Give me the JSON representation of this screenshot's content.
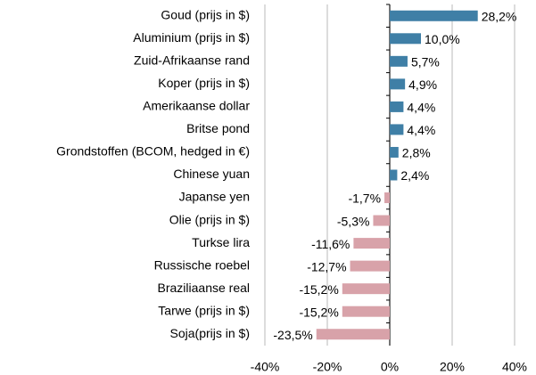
{
  "chart_data": {
    "type": "bar",
    "orientation": "horizontal",
    "categories": [
      "Goud (prijs in $)",
      "Aluminium (prijs in $)",
      "Zuid-Afrikaanse rand",
      "Koper (prijs in $)",
      "Amerikaanse dollar",
      "Britse pond",
      "Grondstoffen (BCOM, hedged in €)",
      "Chinese yuan",
      "Japanse yen",
      "Olie (prijs in $)",
      "Turkse lira",
      "Russische roebel",
      "Braziliaanse real",
      "Tarwe (prijs in $)",
      "Soja(prijs in $)"
    ],
    "values": [
      28.2,
      10.0,
      5.7,
      4.9,
      4.4,
      4.4,
      2.8,
      2.4,
      -1.7,
      -5.3,
      -11.6,
      -12.7,
      -15.2,
      -15.2,
      -23.5
    ],
    "value_labels": [
      "28,2%",
      "10,0%",
      "5,7%",
      "4,9%",
      "4,4%",
      "4,4%",
      "2,8%",
      "2,4%",
      "-1,7%",
      "-5,3%",
      "-11,6%",
      "-12,7%",
      "-15,2%",
      "-15,2%",
      "-23,5%"
    ],
    "positive_color": "#3f7fa6",
    "negative_color": "#d8a2a9",
    "xlim": [
      -40,
      40
    ],
    "xticks": [
      {
        "value": -40,
        "label": "-40%"
      },
      {
        "value": -20,
        "label": "-20%"
      },
      {
        "value": 0,
        "label": "0%"
      },
      {
        "value": 20,
        "label": "20%"
      },
      {
        "value": 40,
        "label": "40%"
      }
    ],
    "grid": true
  }
}
